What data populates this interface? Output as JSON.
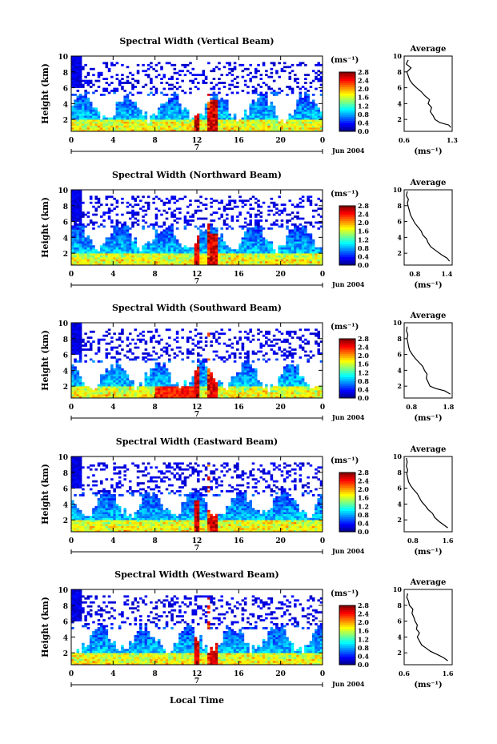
{
  "figure": {
    "xlabel": "Local Time",
    "date_label": "Jun 2004",
    "day_label": "7"
  },
  "chart_data": [
    {
      "type": "heatmap",
      "title": "Spectral Width (Vertical Beam)",
      "ylabel": "Height (km)",
      "xlim": [
        0,
        24
      ],
      "ylim": [
        0.5,
        10
      ],
      "x_ticks": [
        "0",
        "4",
        "8",
        "12",
        "16",
        "20",
        "0"
      ],
      "y_ticks": [
        "2",
        "4",
        "6",
        "8",
        "10"
      ],
      "colorbar": {
        "unit": "(ms⁻¹)",
        "ticks": [
          "0.0",
          "0.4",
          "0.8",
          "1.2",
          "1.6",
          "2.0",
          "2.4",
          "2.8"
        ],
        "range": [
          0,
          2.8
        ]
      },
      "upper_fill_height_km": 3.0,
      "profile": {
        "title": "Average",
        "xlabel": "(ms⁻¹)",
        "xlim": [
          0.6,
          1.3
        ],
        "x_ticks": [
          "0.6",
          "1.3"
        ],
        "y_ticks": [
          "2",
          "4",
          "6",
          "8",
          "10"
        ],
        "points": [
          [
            1.28,
            1.0
          ],
          [
            1.25,
            1.3
          ],
          [
            1.12,
            1.6
          ],
          [
            1.05,
            2.0
          ],
          [
            1.02,
            2.5
          ],
          [
            0.98,
            3.0
          ],
          [
            1.0,
            3.5
          ],
          [
            0.95,
            4.0
          ],
          [
            0.97,
            4.5
          ],
          [
            0.9,
            5.0
          ],
          [
            0.85,
            5.5
          ],
          [
            0.78,
            6.0
          ],
          [
            0.72,
            6.5
          ],
          [
            0.68,
            7.0
          ],
          [
            0.66,
            7.5
          ],
          [
            0.64,
            8.0
          ],
          [
            0.7,
            8.5
          ],
          [
            0.63,
            9.0
          ],
          [
            0.66,
            9.5
          ]
        ]
      }
    },
    {
      "type": "heatmap",
      "title": "Spectral Width (Northward Beam)",
      "ylabel": "Height (km)",
      "xlim": [
        0,
        24
      ],
      "ylim": [
        0.5,
        10
      ],
      "x_ticks": [
        "0",
        "4",
        "8",
        "12",
        "16",
        "20",
        "0"
      ],
      "y_ticks": [
        "2",
        "4",
        "6",
        "8",
        "10"
      ],
      "colorbar": {
        "unit": "(ms⁻¹)",
        "ticks": [
          "0.0",
          "0.4",
          "0.8",
          "1.2",
          "1.6",
          "2.0",
          "2.4",
          "2.8"
        ],
        "range": [
          0,
          2.8
        ]
      },
      "upper_fill_height_km": 3.5,
      "profile": {
        "title": "Average",
        "xlabel": "(ms⁻¹)",
        "xlim": [
          0.6,
          1.5
        ],
        "x_ticks": [
          "0.8",
          "1.4"
        ],
        "y_ticks": [
          "2",
          "4",
          "6",
          "8",
          "10"
        ],
        "points": [
          [
            1.45,
            1.0
          ],
          [
            1.4,
            1.4
          ],
          [
            1.3,
            1.8
          ],
          [
            1.2,
            2.3
          ],
          [
            1.1,
            2.8
          ],
          [
            1.05,
            3.3
          ],
          [
            1.02,
            3.8
          ],
          [
            0.95,
            4.3
          ],
          [
            0.92,
            4.8
          ],
          [
            0.86,
            5.3
          ],
          [
            0.8,
            5.8
          ],
          [
            0.76,
            6.3
          ],
          [
            0.72,
            6.8
          ],
          [
            0.7,
            7.3
          ],
          [
            0.68,
            7.8
          ],
          [
            0.66,
            8.3
          ],
          [
            0.68,
            8.8
          ],
          [
            0.64,
            9.3
          ],
          [
            0.66,
            9.8
          ]
        ]
      }
    },
    {
      "type": "heatmap",
      "title": "Spectral Width (Southward Beam)",
      "ylabel": "Height (km)",
      "xlim": [
        0,
        24
      ],
      "ylim": [
        0.5,
        10
      ],
      "x_ticks": [
        "0",
        "4",
        "8",
        "12",
        "16",
        "20",
        "0"
      ],
      "y_ticks": [
        "2",
        "4",
        "6",
        "8",
        "10"
      ],
      "colorbar": {
        "unit": "(ms⁻¹)",
        "ticks": [
          "0.0",
          "0.4",
          "0.8",
          "1.2",
          "1.6",
          "2.0",
          "2.4",
          "2.8"
        ],
        "range": [
          0,
          2.8
        ]
      },
      "upper_fill_height_km": 2.8,
      "profile": {
        "title": "Average",
        "xlabel": "(ms⁻¹)",
        "xlim": [
          0.6,
          1.9
        ],
        "x_ticks": [
          "0.8",
          "1.8"
        ],
        "y_ticks": [
          "2",
          "4",
          "6",
          "8",
          "10"
        ],
        "points": [
          [
            1.85,
            1.0
          ],
          [
            1.7,
            1.4
          ],
          [
            1.45,
            1.7
          ],
          [
            1.3,
            2.0
          ],
          [
            1.25,
            2.5
          ],
          [
            1.2,
            3.0
          ],
          [
            1.22,
            3.5
          ],
          [
            1.15,
            4.0
          ],
          [
            1.1,
            4.5
          ],
          [
            1.0,
            5.0
          ],
          [
            0.9,
            5.5
          ],
          [
            0.82,
            6.0
          ],
          [
            0.75,
            6.5
          ],
          [
            0.72,
            7.0
          ],
          [
            0.7,
            7.5
          ],
          [
            0.68,
            8.0
          ],
          [
            0.7,
            8.5
          ],
          [
            0.66,
            9.0
          ],
          [
            0.68,
            9.5
          ]
        ]
      }
    },
    {
      "type": "heatmap",
      "title": "Spectral Width (Eastward Beam)",
      "ylabel": "Height (km)",
      "xlim": [
        0,
        24
      ],
      "ylim": [
        0.5,
        10
      ],
      "x_ticks": [
        "0",
        "4",
        "8",
        "12",
        "16",
        "20",
        "0"
      ],
      "y_ticks": [
        "2",
        "4",
        "6",
        "8",
        "10"
      ],
      "colorbar": {
        "unit": "(ms⁻¹)",
        "ticks": [
          "0.0",
          "0.4",
          "0.8",
          "1.2",
          "1.6",
          "2.0",
          "2.4",
          "2.8"
        ],
        "range": [
          0,
          2.8
        ]
      },
      "upper_fill_height_km": 3.5,
      "profile": {
        "title": "Average",
        "xlabel": "(ms⁻¹)",
        "xlim": [
          0.6,
          1.7
        ],
        "x_ticks": [
          "0.8",
          "1.6"
        ],
        "y_ticks": [
          "2",
          "4",
          "6",
          "8",
          "10"
        ],
        "points": [
          [
            1.6,
            1.0
          ],
          [
            1.5,
            1.4
          ],
          [
            1.4,
            1.8
          ],
          [
            1.3,
            2.3
          ],
          [
            1.25,
            2.8
          ],
          [
            1.15,
            3.3
          ],
          [
            1.08,
            3.8
          ],
          [
            1.0,
            4.3
          ],
          [
            0.95,
            4.8
          ],
          [
            0.9,
            5.3
          ],
          [
            0.82,
            5.8
          ],
          [
            0.75,
            6.3
          ],
          [
            0.7,
            6.8
          ],
          [
            0.68,
            7.3
          ],
          [
            0.66,
            7.8
          ],
          [
            0.68,
            8.3
          ],
          [
            0.65,
            8.8
          ],
          [
            0.67,
            9.3
          ],
          [
            0.65,
            9.8
          ]
        ]
      }
    },
    {
      "type": "heatmap",
      "title": "Spectral Width (Westward Beam)",
      "ylabel": "Height (km)",
      "xlim": [
        0,
        24
      ],
      "ylim": [
        0.5,
        10
      ],
      "x_ticks": [
        "0",
        "4",
        "8",
        "12",
        "16",
        "20",
        "0"
      ],
      "y_ticks": [
        "2",
        "4",
        "6",
        "8",
        "10"
      ],
      "colorbar": {
        "unit": "(ms⁻¹)",
        "ticks": [
          "0.0",
          "0.4",
          "0.8",
          "1.2",
          "1.6",
          "2.0",
          "2.4",
          "2.8"
        ],
        "range": [
          0,
          2.8
        ]
      },
      "upper_fill_height_km": 3.2,
      "profile": {
        "title": "Average",
        "xlabel": "(ms⁻¹)",
        "xlim": [
          0.6,
          1.7
        ],
        "x_ticks": [
          "0.6",
          "1.6"
        ],
        "y_ticks": [
          "2",
          "4",
          "6",
          "8",
          "10"
        ],
        "points": [
          [
            1.6,
            1.0
          ],
          [
            1.5,
            1.4
          ],
          [
            1.35,
            1.8
          ],
          [
            1.2,
            2.2
          ],
          [
            1.1,
            2.6
          ],
          [
            1.0,
            3.0
          ],
          [
            0.95,
            3.5
          ],
          [
            0.9,
            4.0
          ],
          [
            0.95,
            4.5
          ],
          [
            0.88,
            5.0
          ],
          [
            0.9,
            5.5
          ],
          [
            0.85,
            6.0
          ],
          [
            0.82,
            6.5
          ],
          [
            0.78,
            7.0
          ],
          [
            0.8,
            7.5
          ],
          [
            0.72,
            8.0
          ],
          [
            0.7,
            8.5
          ],
          [
            0.66,
            9.0
          ],
          [
            0.68,
            9.5
          ]
        ]
      }
    }
  ]
}
